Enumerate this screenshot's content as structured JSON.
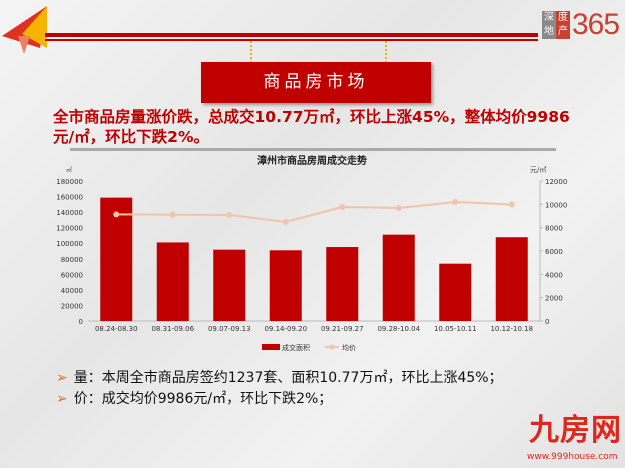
{
  "header": {
    "logo_box": [
      "深",
      "度",
      "地",
      "产"
    ],
    "logo_num": "365",
    "banner": "商品房市场"
  },
  "headline": "全市商品房量涨价跌，总成交10.77万㎡，环比上涨45%，整体均价9986元/㎡，环比下跌2%。",
  "bullets": [
    {
      "icon": "arrow-right-icon",
      "text": "量：本周全市商品房签约1237套、面积10.77万㎡，环比上涨45%；"
    },
    {
      "icon": "arrow-right-icon",
      "text": "价：成交均价9986元/㎡，环比下跌2%；"
    }
  ],
  "footer": {
    "brand": "九房网",
    "url": "www.999house.com"
  },
  "chart_data": {
    "type": "bar+line",
    "title": "漳州市商品房周成交走势",
    "ylabel_left": "㎡",
    "ylabel_right": "元/㎡",
    "categories": [
      "08.24-08.30",
      "08.31-09.06",
      "09.07-09.13",
      "09.14-09.20",
      "09.21-09.27",
      "09.28-10.04",
      "10.05-10.11",
      "10.12-10.18"
    ],
    "series": [
      {
        "name": "成交面积",
        "type": "bar",
        "axis": "left",
        "color": "#c00000",
        "values": [
          158600,
          101000,
          91700,
          90900,
          95100,
          111000,
          73700,
          107700
        ]
      },
      {
        "name": "均价",
        "type": "line",
        "axis": "right",
        "color": "#f2c4a8",
        "values": [
          9140,
          9110,
          9090,
          8490,
          9770,
          9690,
          10200,
          9986
        ]
      }
    ],
    "ylim_left": [
      0,
      180000
    ],
    "yticks_left": [
      0,
      20000,
      40000,
      60000,
      80000,
      100000,
      120000,
      140000,
      160000,
      180000
    ],
    "ylim_right": [
      0,
      12000
    ],
    "yticks_right": [
      0,
      2000,
      4000,
      6000,
      8000,
      10000,
      12000
    ],
    "legend": "bottom",
    "grid": false
  }
}
